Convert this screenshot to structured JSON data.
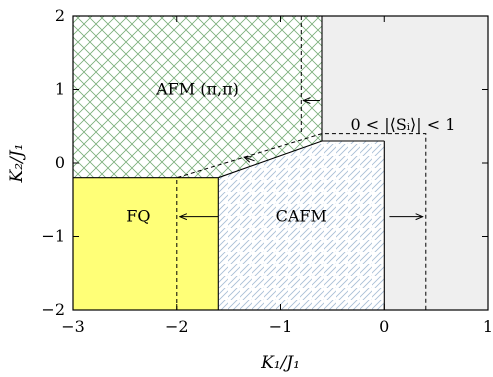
{
  "chart_data": {
    "type": "phase-diagram",
    "title": "",
    "xlabel": "K₁/J₁",
    "ylabel": "K₂/J₁",
    "xlim": [
      -3,
      1
    ],
    "ylim": [
      -2,
      2
    ],
    "x_ticks": [
      -3,
      -2,
      -1,
      0,
      1
    ],
    "y_ticks": [
      -2,
      -1,
      0,
      1,
      2
    ],
    "x_tick_labels": [
      "−3",
      "−2",
      "−1",
      "0",
      "1"
    ],
    "y_tick_labels": [
      "−2",
      "−1",
      "0",
      "1",
      "2"
    ],
    "grid": false,
    "legend": "none",
    "regions": [
      {
        "label": "AFM (π,π)",
        "fill": "#ffffff",
        "pattern": "crosshatch",
        "pattern_color": "#7aae7a",
        "label_pos": [
          -1.8,
          1.0
        ],
        "polygon": [
          [
            -3,
            -0.2
          ],
          [
            -1.6,
            -0.2
          ],
          [
            -0.6,
            0.3
          ],
          [
            -0.6,
            2
          ],
          [
            -3,
            2
          ]
        ]
      },
      {
        "label": "FQ",
        "fill": "#ffff77",
        "pattern": "none",
        "label_pos": [
          -2.37,
          -0.73
        ],
        "polygon": [
          [
            -3,
            -2
          ],
          [
            -1.6,
            -2
          ],
          [
            -1.6,
            -0.2
          ],
          [
            -3,
            -0.2
          ]
        ]
      },
      {
        "label": "CAFM",
        "fill": "#ffffff",
        "pattern": "diagonal",
        "pattern_color": "#a9bfd6",
        "label_pos": [
          -0.8,
          -0.73
        ],
        "polygon": [
          [
            -1.6,
            -2
          ],
          [
            0,
            -2
          ],
          [
            0,
            0.3
          ],
          [
            -0.6,
            0.3
          ],
          [
            -1.6,
            -0.2
          ]
        ]
      },
      {
        "label": "0 < |⟨Sᵢ⟩| < 1",
        "fill": "#efefef",
        "pattern": "none",
        "label_pos": [
          0.18,
          0.52
        ],
        "polygon": [
          [
            -0.6,
            2
          ],
          [
            1,
            2
          ],
          [
            1,
            -2
          ],
          [
            0,
            -2
          ],
          [
            0,
            0.3
          ],
          [
            -0.6,
            0.3
          ]
        ]
      }
    ],
    "dashed_boundary": [
      [
        -2,
        -2
      ],
      [
        -2,
        -0.2
      ],
      [
        -0.6,
        0.4
      ],
      [
        0.4,
        0.4
      ],
      [
        0.4,
        -2
      ]
    ],
    "dashed_vertical_top": [
      [
        -0.8,
        2
      ],
      [
        -0.8,
        0.4
      ]
    ],
    "arrows": [
      {
        "from": [
          -0.62,
          0.85
        ],
        "to": [
          -0.78,
          0.85
        ]
      },
      {
        "from": [
          -1.6,
          -0.73
        ],
        "to": [
          -1.97,
          -0.73
        ]
      },
      {
        "from": [
          0.05,
          -0.73
        ],
        "to": [
          0.37,
          -0.73
        ]
      },
      {
        "from": [
          -1.25,
          0.03
        ],
        "to": [
          -1.35,
          0.08
        ]
      }
    ]
  }
}
